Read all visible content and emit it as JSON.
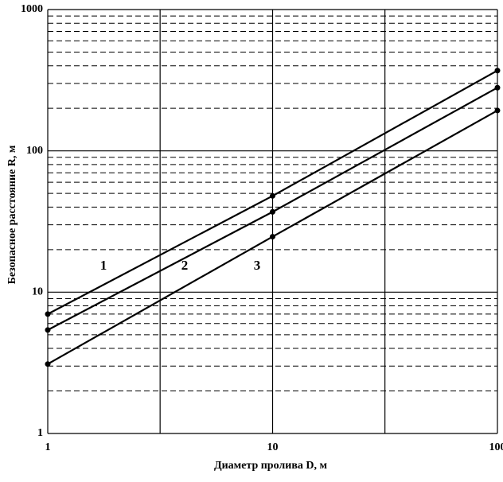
{
  "chart_data": {
    "type": "line",
    "x_label": "Диаметр пролива  D, м",
    "y_label": "Безопасное расстояние  R, м",
    "x": [
      1,
      10,
      100
    ],
    "series": [
      {
        "name": "1",
        "color": "#000000",
        "values": [
          7,
          48,
          370
        ]
      },
      {
        "name": "2",
        "color": "#000000",
        "values": [
          5.4,
          37,
          280
        ]
      },
      {
        "name": "3",
        "color": "#000000",
        "values": [
          3.1,
          24.7,
          193
        ]
      }
    ],
    "xlim": [
      1,
      100
    ],
    "ylim": [
      1,
      1000
    ],
    "xticks": [
      1,
      10,
      100
    ],
    "yticks": [
      1,
      10,
      100,
      1000
    ],
    "x_minor_grid": [
      3.16,
      31.6
    ],
    "y_minor_grid": [
      2,
      3,
      4,
      5,
      6,
      7,
      8,
      9,
      20,
      30,
      40,
      50,
      60,
      70,
      80,
      90,
      200,
      300,
      400,
      500,
      600,
      700,
      800,
      900
    ],
    "log_x": true,
    "log_y": true,
    "grid": true
  }
}
